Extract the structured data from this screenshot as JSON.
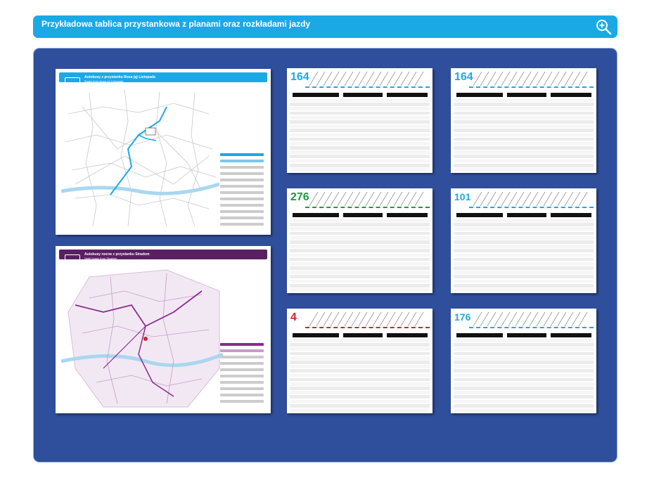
{
  "header": {
    "title": "Przykładowa tablica przystankowa z planami oraz rozkładami jazdy"
  },
  "colors": {
    "header_bg": "#1ba9e6",
    "board_bg": "#2f4f9c",
    "route_blue": "#1ba9e6",
    "route_green": "#1c9a3d",
    "route_red": "#d6222a",
    "night_purple": "#5a1f63"
  },
  "map1": {
    "title": "Autobusy z przystanku Rosa (ą) Listopada",
    "subtitle": "Buses from stops (ą) Listopada"
  },
  "map2": {
    "title": "Autobusy nocne z przystanku Stradom",
    "subtitle": "Night buses from Stradom"
  },
  "timetables": [
    {
      "route": "164",
      "color": "#1ba9e6"
    },
    {
      "route": "164",
      "color": "#1ba9e6"
    },
    {
      "route": "276",
      "color": "#1c9a3d"
    },
    {
      "route": "101",
      "color": "#1ba9e6"
    },
    {
      "route": "4",
      "color": "#d6222a"
    },
    {
      "route": "176",
      "color": "#1ba9e6"
    }
  ],
  "icons": {
    "zoom": "zoom-in-icon"
  }
}
